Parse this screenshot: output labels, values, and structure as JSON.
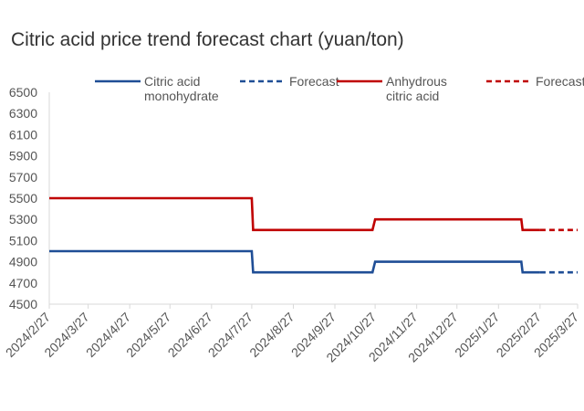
{
  "chart_data": {
    "type": "line",
    "title": "Citric acid price trend forecast chart (yuan/ton)",
    "xlabel": "",
    "ylabel": "",
    "ylim": [
      4500,
      6500
    ],
    "yticks": [
      4500,
      4700,
      4900,
      5100,
      5300,
      5500,
      5700,
      5900,
      6100,
      6300,
      6500
    ],
    "ytick_labels": [
      "4500",
      "4700",
      "4900",
      "5100",
      "5300",
      "5500",
      "5700",
      "5900",
      "6100",
      "6300",
      "6500"
    ],
    "xlim": [
      "2024/2/27",
      "2025/3/27"
    ],
    "xticks": [
      "2024/2/27",
      "2024/3/27",
      "2024/4/27",
      "2024/5/27",
      "2024/6/27",
      "2024/7/27",
      "2024/8/27",
      "2024/9/27",
      "2024/10/27",
      "2024/11/27",
      "2024/12/27",
      "2025/1/27",
      "2025/2/27",
      "2025/3/27"
    ],
    "grid": false,
    "legend_position": "top",
    "legend": [
      {
        "label_lines": [
          "Citric acid",
          "monohydrate"
        ],
        "color": "#1f4e96",
        "style": "solid"
      },
      {
        "label_lines": [
          "Forecast"
        ],
        "color": "#1f4e96",
        "style": "dashed"
      },
      {
        "label_lines": [
          "Anhydrous",
          "citric acid"
        ],
        "color": "#c00000",
        "style": "solid"
      },
      {
        "label_lines": [
          "Forecast"
        ],
        "color": "#c00000",
        "style": "dashed"
      }
    ],
    "series": [
      {
        "name": "Citric acid monohydrate",
        "color": "#1f4e96",
        "style": "solid",
        "x": [
          "2024/2/27",
          "2024/7/27",
          "2024/7/28",
          "2024/10/25",
          "2024/10/27",
          "2025/2/13",
          "2025/2/14",
          "2025/2/27"
        ],
        "y": [
          5000,
          5000,
          4800,
          4800,
          4900,
          4900,
          4800,
          4800
        ]
      },
      {
        "name": "Forecast",
        "color": "#1f4e96",
        "style": "dashed",
        "x": [
          "2025/2/27",
          "2025/3/27"
        ],
        "y": [
          4800,
          4800
        ]
      },
      {
        "name": "Anhydrous citric acid",
        "color": "#c00000",
        "style": "solid",
        "x": [
          "2024/2/27",
          "2024/7/27",
          "2024/7/28",
          "2024/10/25",
          "2024/10/27",
          "2025/2/13",
          "2025/2/14",
          "2025/2/27"
        ],
        "y": [
          5500,
          5500,
          5200,
          5200,
          5300,
          5300,
          5200,
          5200
        ]
      },
      {
        "name": "Forecast",
        "color": "#c00000",
        "style": "dashed",
        "x": [
          "2025/2/27",
          "2025/3/27"
        ],
        "y": [
          5200,
          5200
        ]
      }
    ]
  }
}
